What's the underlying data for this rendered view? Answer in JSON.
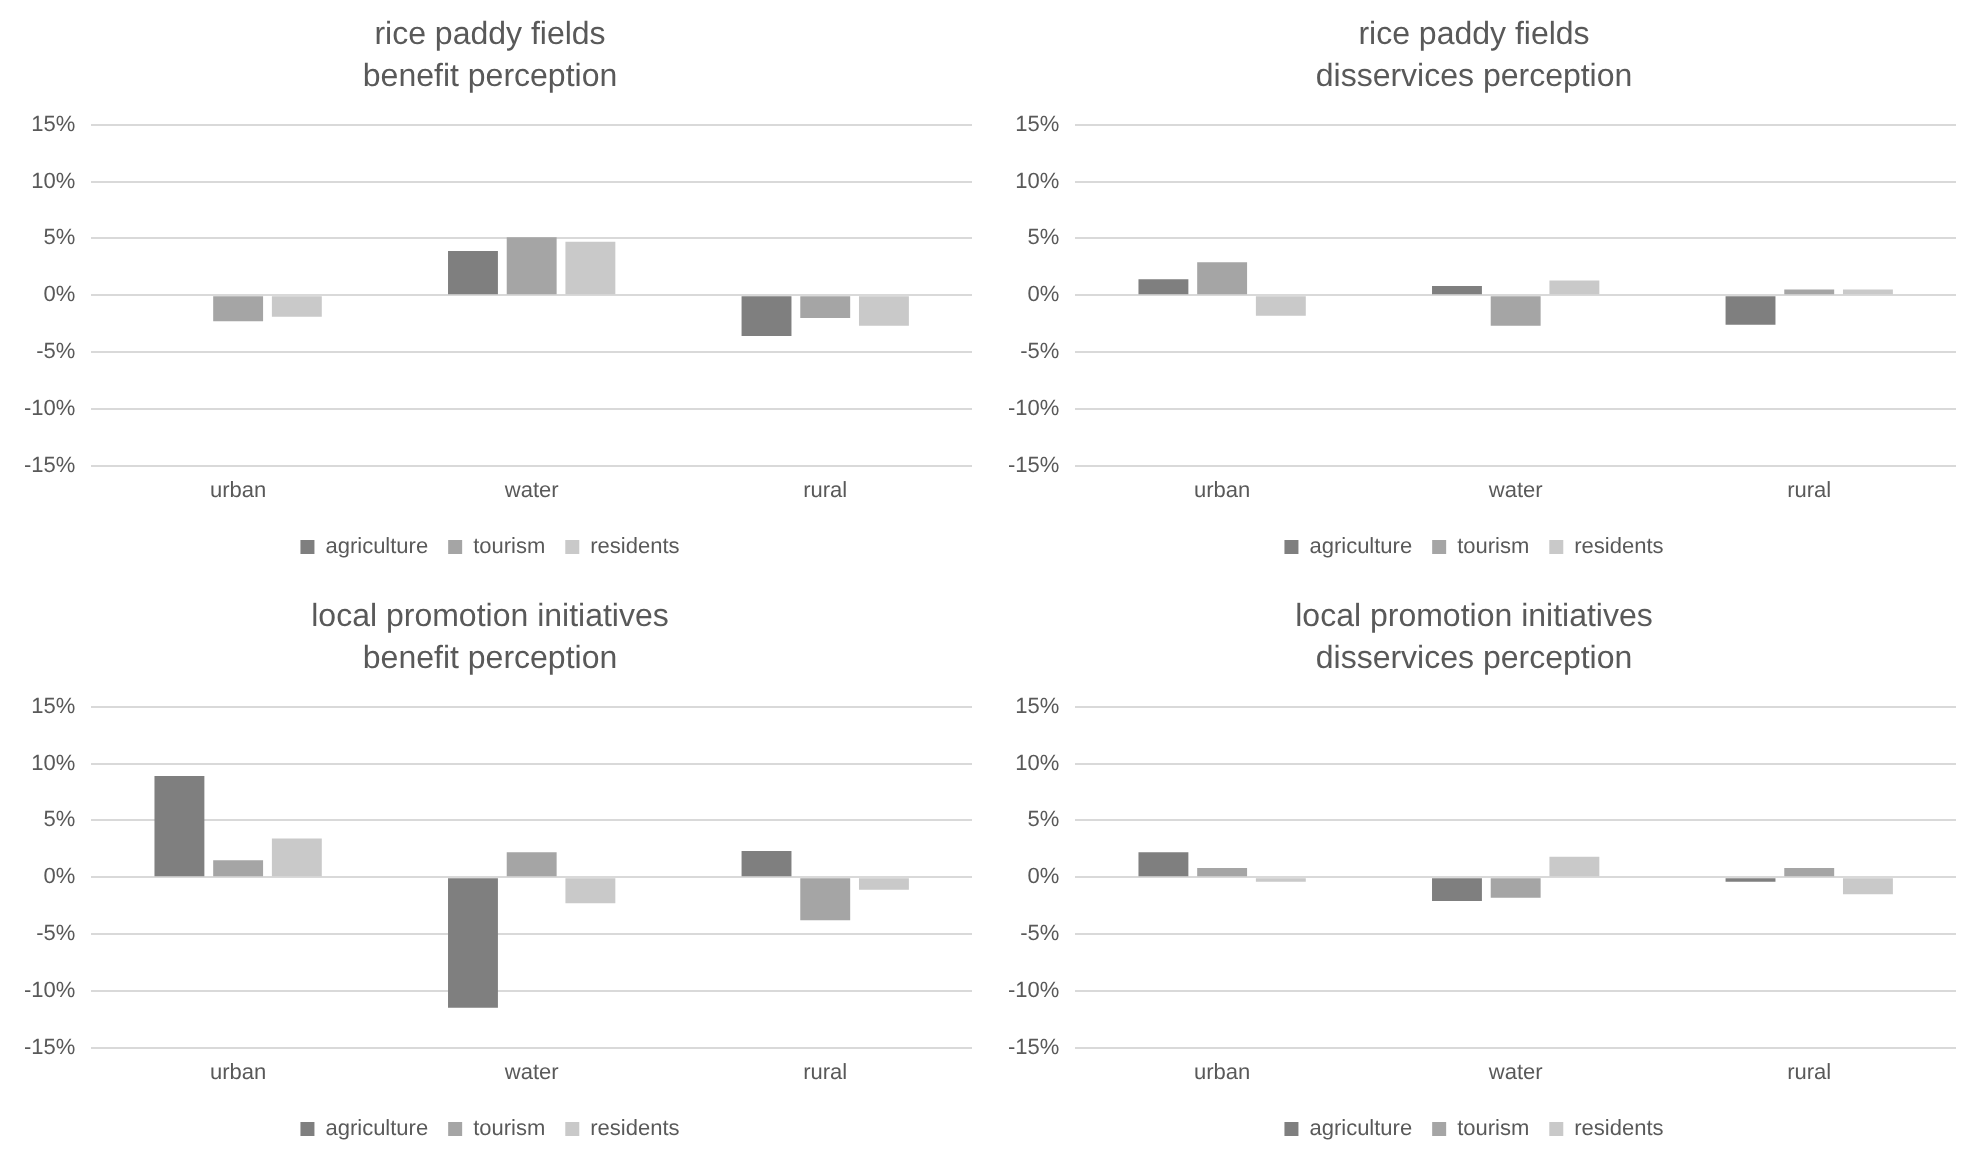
{
  "chart_data": [
    {
      "type": "bar",
      "title": "rice paddy fields",
      "subtitle": "benefit perception",
      "categories": [
        "urban",
        "water",
        "rural"
      ],
      "series": [
        {
          "name": "agriculture",
          "color": "#7f7f7f",
          "values": [
            0,
            3.9,
            -3.6
          ]
        },
        {
          "name": "tourism",
          "color": "#a5a5a5",
          "values": [
            -2.3,
            5.1,
            -2.0
          ]
        },
        {
          "name": "residents",
          "color": "#c9c9c9",
          "values": [
            -1.9,
            4.7,
            -2.7
          ]
        }
      ],
      "ylim": [
        -15,
        15
      ],
      "yticks": [
        {
          "value": -15,
          "label": "-15%"
        },
        {
          "value": -10,
          "label": "-10%"
        },
        {
          "value": -5,
          "label": "-5%"
        },
        {
          "value": 0,
          "label": "0%"
        },
        {
          "value": 5,
          "label": "5%"
        },
        {
          "value": 10,
          "label": "10%"
        },
        {
          "value": 15,
          "label": "15%"
        }
      ],
      "grid": "y",
      "legend": "bottom"
    },
    {
      "type": "bar",
      "title": "rice paddy fields",
      "subtitle": "disservices perception",
      "categories": [
        "urban",
        "water",
        "rural"
      ],
      "series": [
        {
          "name": "agriculture",
          "color": "#7f7f7f",
          "values": [
            1.4,
            0.8,
            -2.6
          ]
        },
        {
          "name": "tourism",
          "color": "#a5a5a5",
          "values": [
            2.9,
            -2.7,
            0.5
          ]
        },
        {
          "name": "residents",
          "color": "#c9c9c9",
          "values": [
            -1.8,
            1.3,
            0.5
          ]
        }
      ],
      "ylim": [
        -15,
        15
      ],
      "yticks": [
        {
          "value": -15,
          "label": "-15%"
        },
        {
          "value": -10,
          "label": "-10%"
        },
        {
          "value": -5,
          "label": "-5%"
        },
        {
          "value": 0,
          "label": "0%"
        },
        {
          "value": 5,
          "label": "5%"
        },
        {
          "value": 10,
          "label": "10%"
        },
        {
          "value": 15,
          "label": "15%"
        }
      ],
      "grid": "y",
      "legend": "bottom"
    },
    {
      "type": "bar",
      "title": "local promotion initiatives",
      "subtitle": "benefit perception",
      "categories": [
        "urban",
        "water",
        "rural"
      ],
      "series": [
        {
          "name": "agriculture",
          "color": "#7f7f7f",
          "values": [
            8.9,
            -11.5,
            2.3
          ]
        },
        {
          "name": "tourism",
          "color": "#a5a5a5",
          "values": [
            1.5,
            2.2,
            -3.8
          ]
        },
        {
          "name": "residents",
          "color": "#c9c9c9",
          "values": [
            3.4,
            -2.3,
            -1.1
          ]
        }
      ],
      "ylim": [
        -15,
        15
      ],
      "yticks": [
        {
          "value": -15,
          "label": "-15%"
        },
        {
          "value": -10,
          "label": "-10%"
        },
        {
          "value": -5,
          "label": "-5%"
        },
        {
          "value": 0,
          "label": "0%"
        },
        {
          "value": 5,
          "label": "5%"
        },
        {
          "value": 10,
          "label": "10%"
        },
        {
          "value": 15,
          "label": "15%"
        }
      ],
      "grid": "y",
      "legend": "bottom"
    },
    {
      "type": "bar",
      "title": "local promotion initiatives",
      "subtitle": "disservices perception",
      "categories": [
        "urban",
        "water",
        "rural"
      ],
      "series": [
        {
          "name": "agriculture",
          "color": "#7f7f7f",
          "values": [
            2.2,
            -2.1,
            -0.4
          ]
        },
        {
          "name": "tourism",
          "color": "#a5a5a5",
          "values": [
            0.8,
            -1.8,
            0.8
          ]
        },
        {
          "name": "residents",
          "color": "#c9c9c9",
          "values": [
            -0.4,
            1.8,
            -1.5
          ]
        }
      ],
      "ylim": [
        -15,
        15
      ],
      "yticks": [
        {
          "value": -15,
          "label": "-15%"
        },
        {
          "value": -10,
          "label": "-10%"
        },
        {
          "value": -5,
          "label": "-5%"
        },
        {
          "value": 0,
          "label": "0%"
        },
        {
          "value": 5,
          "label": "5%"
        },
        {
          "value": 10,
          "label": "10%"
        },
        {
          "value": 15,
          "label": "15%"
        }
      ],
      "grid": "y",
      "legend": "bottom"
    }
  ]
}
